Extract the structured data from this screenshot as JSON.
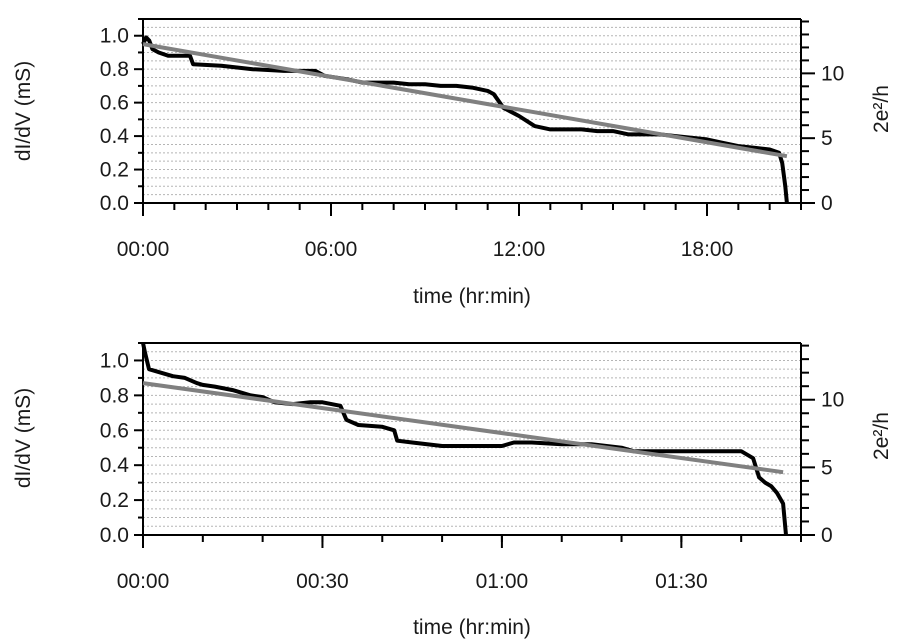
{
  "chart_data": [
    {
      "type": "line",
      "xlabel": "time (hr:min)",
      "ylabel": "dI/dV (mS)",
      "y2label": "2e²/h",
      "x_tick_labels": [
        "00:00",
        "06:00",
        "12:00",
        "18:00"
      ],
      "x_ticks_hours": [
        0,
        6,
        12,
        18
      ],
      "xlim_hours": [
        0,
        21
      ],
      "ylim": [
        0,
        1.1
      ],
      "y_ticks": [
        0.0,
        0.2,
        0.4,
        0.6,
        0.8,
        1.0
      ],
      "y_tick_labels": [
        "0.0",
        "0.2",
        "0.4",
        "0.6",
        "0.8",
        "1.0"
      ],
      "y2_ticks": [
        0,
        5,
        10
      ],
      "y2_tick_labels": [
        "0",
        "5",
        "10"
      ],
      "y2_scale_mS_per_unit": 0.0775,
      "grid": true,
      "series": [
        {
          "role": "data",
          "color": "#000000",
          "x": [
            0.0,
            0.1,
            0.2,
            0.3,
            0.5,
            0.8,
            1.5,
            1.6,
            2.5,
            3.5,
            4.5,
            5.5,
            5.8,
            6.5,
            7.0,
            7.5,
            8.0,
            8.5,
            9.0,
            9.5,
            10.0,
            10.5,
            11.0,
            11.2,
            11.5,
            12.0,
            12.5,
            13.0,
            13.5,
            14.0,
            14.5,
            15.0,
            15.5,
            16.0,
            16.5,
            17.0,
            17.5,
            18.0,
            18.5,
            19.0,
            19.5,
            20.0,
            20.3,
            20.4,
            20.5,
            20.55
          ],
          "y": [
            0.95,
            0.99,
            0.97,
            0.92,
            0.9,
            0.88,
            0.88,
            0.83,
            0.82,
            0.8,
            0.79,
            0.79,
            0.76,
            0.74,
            0.72,
            0.72,
            0.72,
            0.71,
            0.71,
            0.7,
            0.7,
            0.69,
            0.67,
            0.65,
            0.57,
            0.52,
            0.46,
            0.44,
            0.44,
            0.44,
            0.43,
            0.43,
            0.41,
            0.41,
            0.41,
            0.4,
            0.39,
            0.38,
            0.36,
            0.34,
            0.33,
            0.32,
            0.3,
            0.24,
            0.1,
            0.0
          ]
        },
        {
          "role": "fit",
          "color": "#808080",
          "x": [
            0.0,
            20.55
          ],
          "y": [
            0.95,
            0.28
          ]
        }
      ]
    },
    {
      "type": "line",
      "xlabel": "time (hr:min)",
      "ylabel": "dI/dV (mS)",
      "y2label": "2e²/h",
      "x_tick_labels": [
        "00:00",
        "00:30",
        "01:00",
        "01:30"
      ],
      "x_ticks_minutes": [
        0,
        30,
        60,
        90
      ],
      "xlim_minutes": [
        0,
        110
      ],
      "ylim": [
        0,
        1.1
      ],
      "y_ticks": [
        0.0,
        0.2,
        0.4,
        0.6,
        0.8,
        1.0
      ],
      "y_tick_labels": [
        "0.0",
        "0.2",
        "0.4",
        "0.6",
        "0.8",
        "1.0"
      ],
      "y2_ticks": [
        0,
        5,
        10
      ],
      "y2_tick_labels": [
        "0",
        "5",
        "10"
      ],
      "y2_scale_mS_per_unit": 0.0775,
      "grid": true,
      "series": [
        {
          "role": "data",
          "color": "#000000",
          "x": [
            0.0,
            0.3,
            1.0,
            3.0,
            5.0,
            7.0,
            9.0,
            10.0,
            12.0,
            15.0,
            18.0,
            20.0,
            22.0,
            25.0,
            28.0,
            30.0,
            33.0,
            34.0,
            36.0,
            40.0,
            42.0,
            42.5,
            45.0,
            50.0,
            55.0,
            60.0,
            62.0,
            65.0,
            70.0,
            75.0,
            80.0,
            82.0,
            85.0,
            90.0,
            95.0,
            100.0,
            102.0,
            103.0,
            104.0,
            105.0,
            106.0,
            107.0,
            107.5
          ],
          "y": [
            1.1,
            1.05,
            0.95,
            0.93,
            0.91,
            0.9,
            0.87,
            0.86,
            0.85,
            0.83,
            0.8,
            0.79,
            0.76,
            0.75,
            0.76,
            0.76,
            0.74,
            0.66,
            0.63,
            0.62,
            0.6,
            0.54,
            0.53,
            0.51,
            0.51,
            0.51,
            0.53,
            0.53,
            0.52,
            0.52,
            0.5,
            0.48,
            0.48,
            0.48,
            0.48,
            0.48,
            0.44,
            0.33,
            0.3,
            0.28,
            0.24,
            0.18,
            0.0
          ]
        },
        {
          "role": "fit",
          "color": "#808080",
          "x": [
            0.0,
            107.0
          ],
          "y": [
            0.87,
            0.36
          ]
        }
      ]
    }
  ]
}
